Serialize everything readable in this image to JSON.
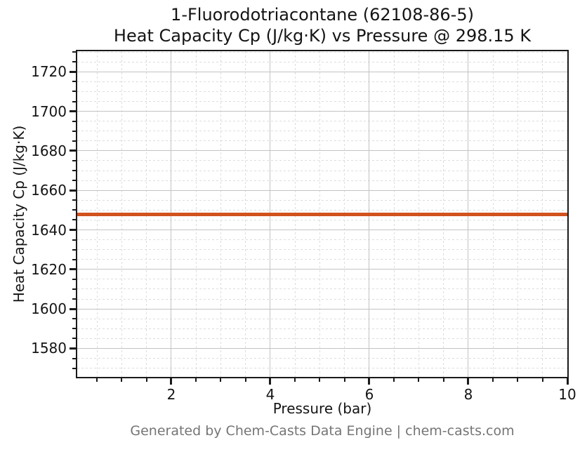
{
  "figure": {
    "title_line1": "1-Fluorodotriacontane (62108-86-5)",
    "title_line2": "Heat Capacity Cp (J/kg·K) vs Pressure @ 298.15 K",
    "footer": "Generated by Chem-Casts Data Engine | chem-casts.com"
  },
  "chart_data": {
    "type": "line",
    "title": "1-Fluorodotriacontane (62108-86-5)\nHeat Capacity Cp (J/kg·K) vs Pressure @ 298.15 K",
    "xlabel": "Pressure (bar)",
    "ylabel": "Heat Capacity Cp (J/kg·K)",
    "xlim": [
      0.1,
      10
    ],
    "ylim": [
      1565.6,
      1730.4
    ],
    "x_major_ticks": [
      2,
      4,
      6,
      8,
      10
    ],
    "x_minor_step": 0.5,
    "y_major_ticks": [
      1580,
      1600,
      1620,
      1640,
      1660,
      1680,
      1700,
      1720
    ],
    "y_minor_step": 5,
    "grid": true,
    "legend": false,
    "series": [
      {
        "name": "Heat Capacity Cp",
        "color": "#d2521e",
        "linewidth": 5,
        "x": [
          0.1,
          1,
          2,
          3,
          4,
          5,
          6,
          7,
          8,
          9,
          10
        ],
        "y": [
          1648,
          1648,
          1648,
          1648,
          1648,
          1648,
          1648,
          1648,
          1648,
          1648,
          1648
        ]
      }
    ]
  },
  "colors": {
    "line": "#d2521e",
    "grid_major": "#c3c3c3",
    "grid_minor": "#dddddd",
    "spine": "#1a1a1a",
    "tick": "#1a1a1a",
    "title_text": "#141414",
    "tick_text": "#141414",
    "footer_text": "#757575",
    "background": "#ffffff"
  }
}
